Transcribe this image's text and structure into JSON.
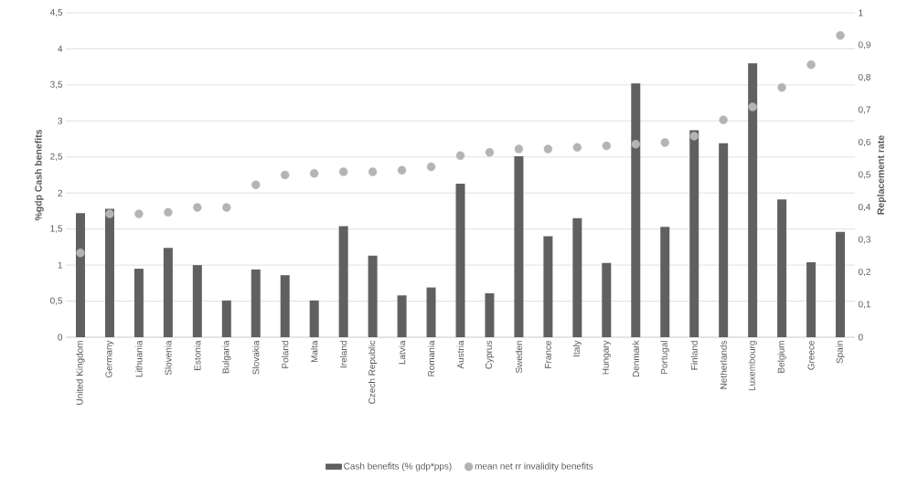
{
  "chart_data": {
    "type": "bar",
    "ylabel": "%gdp Cash benefits",
    "y2label": "Replacement rate",
    "categories": [
      "United Kingdom",
      "Germany",
      "Lithuania",
      "Slovenia",
      "Estonia",
      "Bulgaria",
      "Slovakia",
      "Poland",
      "Malta",
      "Ireland",
      "Czech Republic",
      "Latvia",
      "Romania",
      "Austria",
      "Cyprus",
      "Sweden",
      "France",
      "Italy",
      "Hungary",
      "Denmark",
      "Portugal",
      "Finland",
      "Netherlands",
      "Luxembourg",
      "Belgium",
      "Greece",
      "Spain"
    ],
    "series": [
      {
        "name": "Cash benefits (% gdp*pps)",
        "color": "#606060",
        "values": [
          1.72,
          1.78,
          0.95,
          1.24,
          1.0,
          0.51,
          0.94,
          0.86,
          0.51,
          1.54,
          1.13,
          0.58,
          0.69,
          2.13,
          0.61,
          2.51,
          1.4,
          1.65,
          1.03,
          3.52,
          1.53,
          2.87,
          2.69,
          3.8,
          1.91,
          1.04,
          1.46
        ]
      },
      {
        "name": "mean net rr invalidity benefits",
        "type": "scatter",
        "axis": "y2",
        "color": "#b4b4b4",
        "values": [
          0.26,
          0.38,
          0.38,
          0.385,
          0.4,
          0.4,
          0.47,
          0.5,
          0.505,
          0.51,
          0.51,
          0.515,
          0.525,
          0.56,
          0.57,
          0.58,
          0.58,
          0.585,
          0.59,
          0.595,
          0.6,
          0.62,
          0.67,
          0.71,
          0.77,
          0.84,
          0.93
        ]
      }
    ],
    "ylim": [
      0,
      4.5
    ],
    "yticks": [
      0,
      {
        "value": 0.5,
        "label": "0,5"
      },
      1,
      {
        "value": 1.5,
        "label": "1,5"
      },
      2,
      {
        "value": 2.5,
        "label": "2,5"
      },
      3,
      {
        "value": 3.5,
        "label": "3,5"
      },
      4,
      {
        "value": 4.5,
        "label": "4,5"
      }
    ],
    "y2lim": [
      0,
      1
    ],
    "y2ticks": [
      0,
      {
        "value": 0.1,
        "label": "0,1"
      },
      {
        "value": 0.2,
        "label": "0,2"
      },
      {
        "value": 0.3,
        "label": "0,3"
      },
      {
        "value": 0.4,
        "label": "0,4"
      },
      {
        "value": 0.5,
        "label": "0,5"
      },
      {
        "value": 0.6,
        "label": "0,6"
      },
      {
        "value": 0.7,
        "label": "0,7"
      },
      {
        "value": 0.8,
        "label": "0,8"
      },
      {
        "value": 0.9,
        "label": "0,9"
      },
      1
    ],
    "grid": "y",
    "legend": "bottom"
  }
}
